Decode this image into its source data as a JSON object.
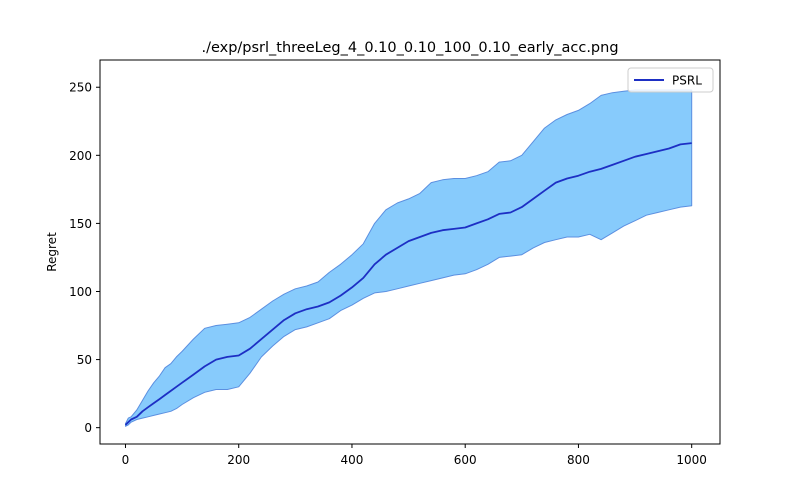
{
  "chart_data": {
    "type": "line",
    "title": "./exp/psrl_threeLeg_4_0.10_0.10_100_0.10_early_acc.png",
    "xlabel": "",
    "ylabel": "Regret",
    "xlim": [
      -45,
      1050
    ],
    "ylim": [
      -12,
      270
    ],
    "xticks": [
      0,
      200,
      400,
      600,
      800,
      1000
    ],
    "yticks": [
      0,
      50,
      100,
      150,
      200,
      250
    ],
    "grid": false,
    "legend": {
      "placement": "top-right",
      "entries": [
        "PSRL"
      ]
    },
    "colors": {
      "line": "#1d2fc4",
      "band_fill": "#87cbfc",
      "band_edge": "#5b8fe0"
    },
    "series": [
      {
        "name": "PSRL",
        "x": [
          0,
          5,
          10,
          20,
          30,
          40,
          50,
          60,
          70,
          80,
          90,
          100,
          120,
          140,
          160,
          180,
          200,
          220,
          240,
          260,
          280,
          300,
          320,
          340,
          360,
          380,
          400,
          420,
          440,
          460,
          480,
          500,
          520,
          540,
          560,
          580,
          600,
          620,
          640,
          660,
          680,
          700,
          720,
          740,
          760,
          780,
          800,
          820,
          840,
          860,
          880,
          900,
          920,
          940,
          960,
          980,
          1000
        ],
        "mean": [
          2,
          4,
          6,
          8,
          12,
          15,
          18,
          21,
          24,
          27,
          30,
          33,
          39,
          45,
          50,
          52,
          53,
          58,
          65,
          72,
          79,
          84,
          87,
          89,
          92,
          97,
          103,
          110,
          120,
          127,
          132,
          137,
          140,
          143,
          145,
          146,
          147,
          150,
          153,
          157,
          158,
          162,
          168,
          174,
          180,
          183,
          185,
          188,
          190,
          193,
          196,
          199,
          201,
          203,
          205,
          208,
          209
        ],
        "upper": [
          3,
          7,
          8,
          13,
          20,
          27,
          33,
          38,
          44,
          47,
          52,
          56,
          65,
          73,
          75,
          76,
          77,
          81,
          87,
          93,
          98,
          102,
          104,
          107,
          114,
          120,
          127,
          135,
          150,
          160,
          165,
          168,
          172,
          180,
          182,
          183,
          183,
          185,
          188,
          195,
          196,
          200,
          210,
          220,
          226,
          230,
          233,
          238,
          244,
          246,
          247,
          248,
          248,
          248,
          248,
          248,
          248
        ],
        "lower": [
          1,
          2,
          4,
          6,
          7,
          8,
          9,
          10,
          11,
          12,
          14,
          17,
          22,
          26,
          28,
          28,
          30,
          40,
          52,
          60,
          67,
          72,
          74,
          77,
          80,
          86,
          90,
          95,
          99,
          100,
          102,
          104,
          106,
          108,
          110,
          112,
          113,
          116,
          120,
          125,
          126,
          127,
          132,
          136,
          138,
          140,
          140,
          142,
          138,
          143,
          148,
          152,
          156,
          158,
          160,
          162,
          163
        ]
      }
    ]
  }
}
